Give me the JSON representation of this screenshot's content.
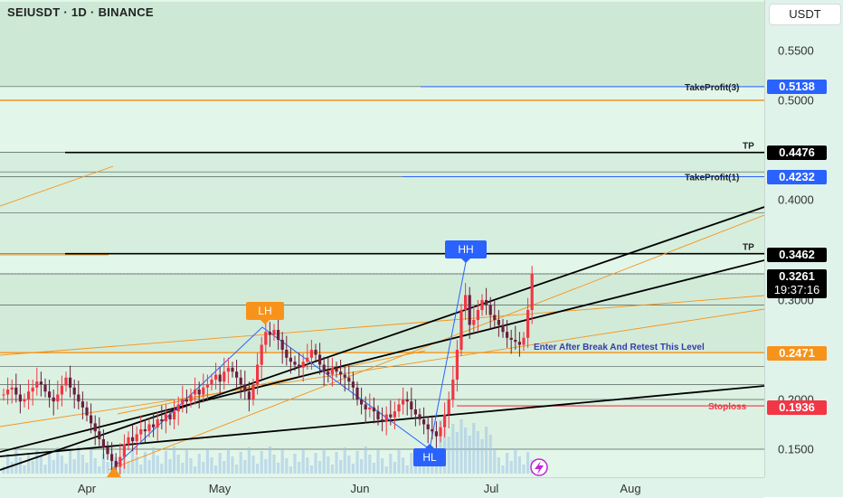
{
  "header": {
    "symbol": "SEIUSDT · 1D · BINANCE"
  },
  "price_axis": {
    "currency": "USDT",
    "ticks": [
      "0.5500",
      "0.5000",
      "0.4000",
      "0.3000",
      "0.2000",
      "0.1500"
    ],
    "badges": [
      {
        "label": "0.5138",
        "color": "#2962ff"
      },
      {
        "label": "0.4476",
        "color": "#000000"
      },
      {
        "label": "0.4232",
        "color": "#2962ff"
      },
      {
        "label": "0.3462",
        "color": "#000000"
      },
      {
        "label": "0.3261",
        "sublabel": "19:37:16",
        "color": "#000000"
      },
      {
        "label": "0.2471",
        "color": "#f7931a"
      },
      {
        "label": "0.1936",
        "color": "#f23645"
      }
    ]
  },
  "time_axis": {
    "ticks": [
      "Apr",
      "May",
      "Jun",
      "Jul",
      "Aug"
    ]
  },
  "annotations": {
    "tp3": "TakeProfit(3)",
    "tp_a": "TP",
    "tp1": "TakeProfit(1)",
    "tp_b": "TP",
    "entry": "Enter After Break And Retest This Level",
    "stoploss": "Stoploss",
    "lh": "LH",
    "hh": "HH",
    "hl": "HL"
  },
  "colors": {
    "up": "#f23645",
    "down": "#6b1f3d",
    "bg": "#e3f6ea",
    "band": "#cde9d6",
    "accent": "#f7931a"
  },
  "chart_data": {
    "type": "candlestick",
    "symbol": "SEIUSDT",
    "interval": "1D",
    "exchange": "BINANCE",
    "y_range": [
      0.125,
      0.6
    ],
    "levels": {
      "take_profit_3": 0.5138,
      "tp_upper": 0.4476,
      "take_profit_1": 0.4232,
      "tp_lower": 0.3462,
      "last_price": 0.3261,
      "entry": 0.2471,
      "stoploss": 0.1936
    },
    "pivots": [
      {
        "label": "LH",
        "x": "May 2",
        "y": 0.27
      },
      {
        "label": "HH",
        "x": "Jun 24",
        "y": 0.34
      },
      {
        "label": "HL",
        "x": "Jun 18",
        "y": 0.16
      }
    ],
    "closes": [
      0.205,
      0.21,
      0.212,
      0.205,
      0.198,
      0.2,
      0.208,
      0.212,
      0.218,
      0.215,
      0.208,
      0.202,
      0.198,
      0.205,
      0.214,
      0.222,
      0.212,
      0.205,
      0.198,
      0.192,
      0.184,
      0.176,
      0.168,
      0.16,
      0.152,
      0.145,
      0.138,
      0.132,
      0.142,
      0.155,
      0.162,
      0.158,
      0.165,
      0.17,
      0.168,
      0.175,
      0.172,
      0.18,
      0.178,
      0.185,
      0.18,
      0.188,
      0.195,
      0.2,
      0.198,
      0.205,
      0.21,
      0.205,
      0.212,
      0.215,
      0.22,
      0.225,
      0.218,
      0.228,
      0.232,
      0.228,
      0.222,
      0.215,
      0.208,
      0.2,
      0.215,
      0.235,
      0.255,
      0.268,
      0.265,
      0.27,
      0.26,
      0.25,
      0.242,
      0.238,
      0.235,
      0.232,
      0.238,
      0.242,
      0.25,
      0.245,
      0.235,
      0.228,
      0.225,
      0.232,
      0.228,
      0.225,
      0.222,
      0.218,
      0.212,
      0.2,
      0.195,
      0.19,
      0.192,
      0.188,
      0.18,
      0.178,
      0.185,
      0.182,
      0.188,
      0.195,
      0.2,
      0.198,
      0.19,
      0.185,
      0.18,
      0.175,
      0.17,
      0.168,
      0.163,
      0.172,
      0.185,
      0.2,
      0.22,
      0.25,
      0.29,
      0.305,
      0.275,
      0.28,
      0.29,
      0.3,
      0.295,
      0.285,
      0.28,
      0.275,
      0.268,
      0.262,
      0.26,
      0.258,
      0.255,
      0.262,
      0.29,
      0.3261
    ]
  }
}
